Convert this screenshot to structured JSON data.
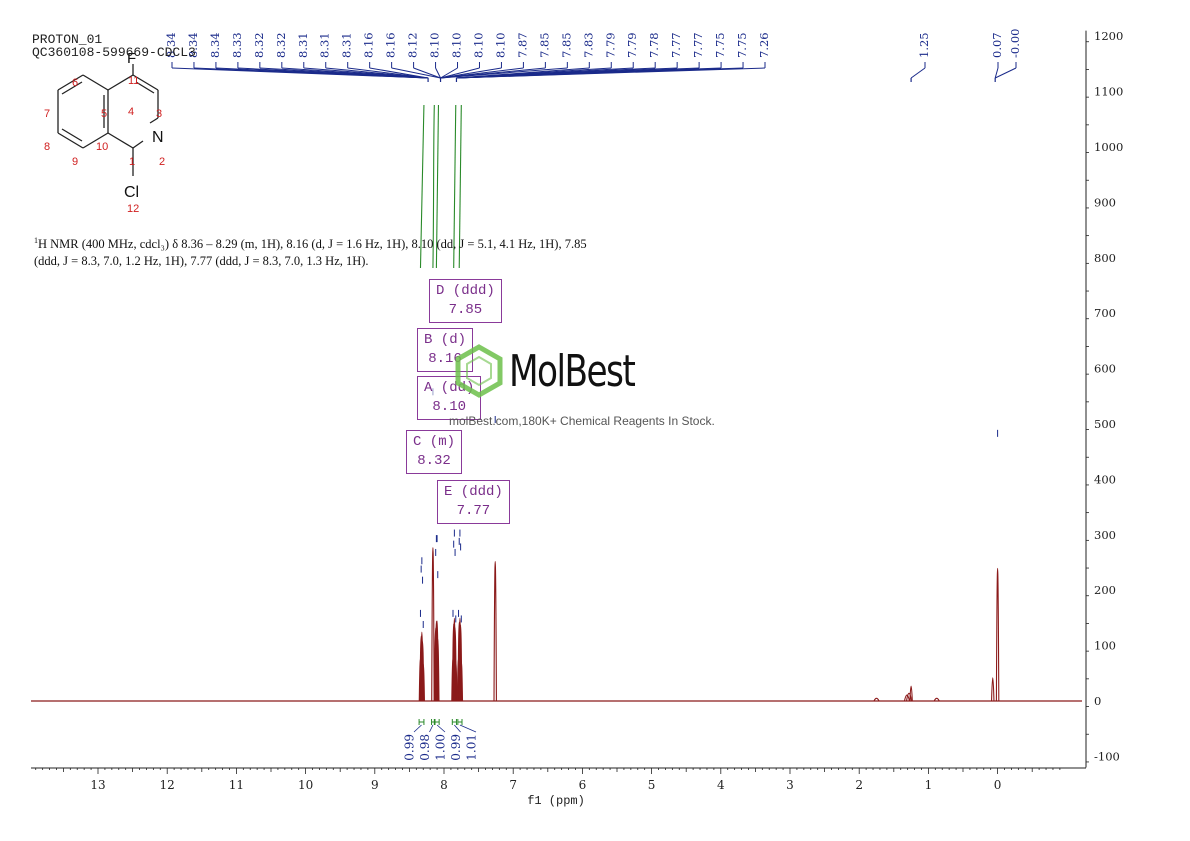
{
  "header": {
    "line1": "PROTON_01",
    "line2": "QC360108-599669-CDCL3"
  },
  "molecule": {
    "atoms": {
      "F": "F",
      "N": "N",
      "Cl": "Cl"
    },
    "numbers": [
      "11",
      "6",
      "5",
      "4",
      "3",
      "7",
      "8",
      "9",
      "10",
      "1",
      "2",
      "12"
    ]
  },
  "description": {
    "sup": "1",
    "text": "H NMR (400 MHz, cdcl₃) δ 8.36 – 8.29 (m, 1H), 8.16 (d, J = 1.6 Hz, 1H), 8.10 (dd, J = 5.1, 4.1 Hz, 1H), 7.85 (ddd, J = 8.3, 7.0, 1.2 Hz, 1H), 7.77 (ddd, J = 8.3, 7.0, 1.3 Hz, 1H)."
  },
  "multiplets": [
    {
      "id": "D",
      "type": "D (ddd)",
      "shift": "7.85"
    },
    {
      "id": "B",
      "type": "B (d)",
      "shift": "8.16"
    },
    {
      "id": "A",
      "type": "A (dd)",
      "shift": "8.10"
    },
    {
      "id": "C",
      "type": "C (m)",
      "shift": "8.32"
    },
    {
      "id": "E",
      "type": "E (ddd)",
      "shift": "7.77"
    }
  ],
  "watermark": {
    "brand": "MolBest",
    "tagline": "molBest.com,180K+ Chemical Reagents In Stock."
  },
  "colors": {
    "spectrum": "#8b1a1a",
    "peak_label": "#1a2a8a",
    "integral": "#2a8a2a",
    "box": "#8a3a9a",
    "logo": "#6cc04a"
  },
  "chart_data": {
    "type": "line",
    "xlabel": "f1 (ppm)",
    "xlim": [
      14.0,
      -1.0
    ],
    "ylim": [
      -120,
      1210
    ],
    "x_ticks": [
      "13",
      "12",
      "11",
      "10",
      "9",
      "8",
      "7",
      "6",
      "5",
      "4",
      "3",
      "2",
      "1",
      "0"
    ],
    "y_ticks": [
      "1200",
      "1100",
      "1000",
      "900",
      "800",
      "700",
      "600",
      "500",
      "400",
      "300",
      "200",
      "100",
      "0",
      "-100"
    ],
    "peak_labels": [
      "8.34",
      "8.34",
      "8.34",
      "8.33",
      "8.32",
      "8.32",
      "8.31",
      "8.31",
      "8.31",
      "8.16",
      "8.16",
      "8.12",
      "8.10",
      "8.10",
      "8.10",
      "8.10",
      "7.87",
      "7.85",
      "7.85",
      "7.83",
      "7.79",
      "7.79",
      "7.78",
      "7.77",
      "7.77",
      "7.75",
      "7.75",
      "7.26",
      "1.25",
      "0.07",
      "-0.00"
    ],
    "peaks": [
      {
        "x": 8.34,
        "y": 150
      },
      {
        "x": 8.33,
        "y": 230
      },
      {
        "x": 8.32,
        "y": 245
      },
      {
        "x": 8.31,
        "y": 210
      },
      {
        "x": 8.3,
        "y": 130
      },
      {
        "x": 8.16,
        "y": 550
      },
      {
        "x": 8.12,
        "y": 260
      },
      {
        "x": 8.11,
        "y": 285
      },
      {
        "x": 8.1,
        "y": 285
      },
      {
        "x": 8.09,
        "y": 220
      },
      {
        "x": 7.87,
        "y": 150
      },
      {
        "x": 7.86,
        "y": 275
      },
      {
        "x": 7.85,
        "y": 295
      },
      {
        "x": 7.84,
        "y": 260
      },
      {
        "x": 7.83,
        "y": 140
      },
      {
        "x": 7.79,
        "y": 150
      },
      {
        "x": 7.78,
        "y": 280
      },
      {
        "x": 7.77,
        "y": 295
      },
      {
        "x": 7.76,
        "y": 270
      },
      {
        "x": 7.75,
        "y": 140
      },
      {
        "x": 7.26,
        "y": 500
      },
      {
        "x": 1.75,
        "y": 6
      },
      {
        "x": 1.31,
        "y": 18
      },
      {
        "x": 1.28,
        "y": 24
      },
      {
        "x": 1.25,
        "y": 50
      },
      {
        "x": 0.88,
        "y": 6
      },
      {
        "x": 0.07,
        "y": 80
      },
      {
        "x": 0.0,
        "y": 475
      }
    ],
    "integrals": [
      {
        "from": 8.36,
        "to": 8.29,
        "value": "0.99"
      },
      {
        "from": 8.18,
        "to": 8.14,
        "value": "0.98"
      },
      {
        "from": 8.13,
        "to": 8.07,
        "value": "1.00"
      },
      {
        "from": 7.88,
        "to": 7.82,
        "value": "0.99"
      },
      {
        "from": 7.8,
        "to": 7.74,
        "value": "1.01"
      }
    ]
  }
}
